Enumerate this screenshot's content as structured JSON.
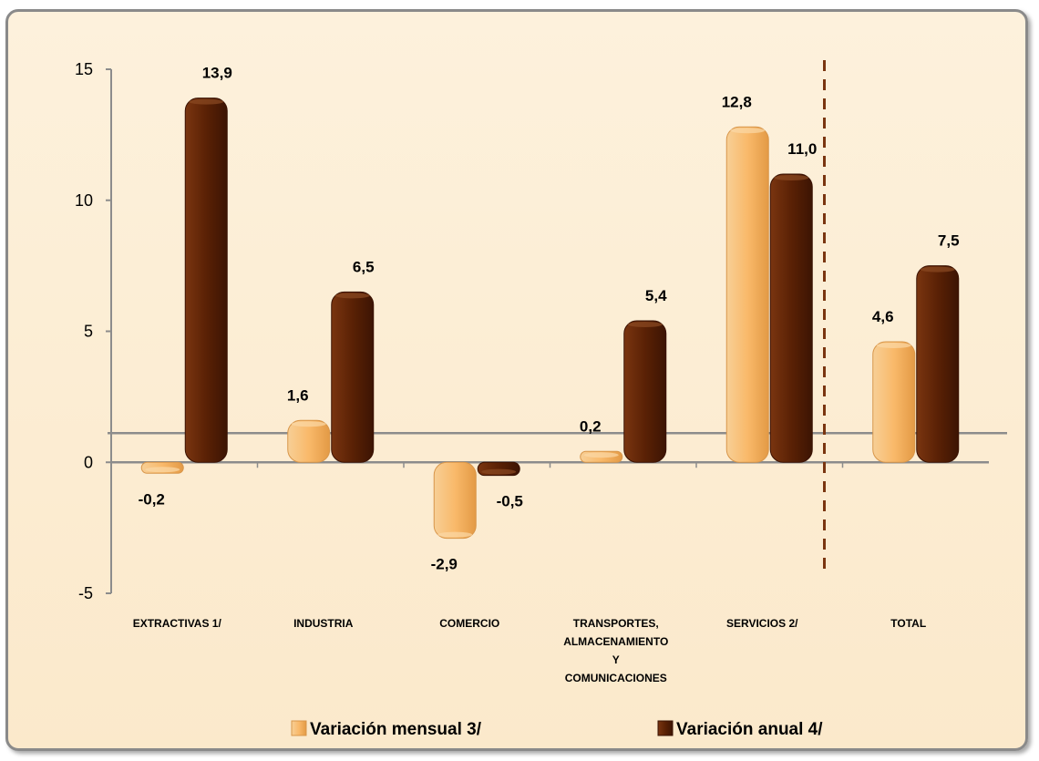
{
  "chart_data": {
    "type": "bar",
    "categories": [
      [
        "EXTRACTIVAS  1/"
      ],
      [
        "INDUSTRIA"
      ],
      [
        "COMERCIO"
      ],
      [
        "TRANSPORTES,",
        "ALMACENAMIENTO",
        "Y",
        "COMUNICACIONES"
      ],
      [
        "SERVICIOS  2/"
      ],
      [
        "TOTAL"
      ]
    ],
    "series": [
      {
        "name": "Variación mensual 3/",
        "values": [
          -0.2,
          1.6,
          -2.9,
          0.2,
          12.8,
          4.6
        ],
        "labels": [
          "-0,2",
          "1,6",
          "-2,9",
          "0,2",
          "12,8",
          "4,6"
        ],
        "color": "#f5c07a"
      },
      {
        "name": "Variación anual 4/",
        "values": [
          13.9,
          6.5,
          -0.5,
          5.4,
          11.0,
          7.5
        ],
        "labels": [
          "13,9",
          "6,5",
          "-0,5",
          "5,4",
          "11,0",
          "7,5"
        ],
        "color": "#6b2a08"
      }
    ],
    "yticks": [
      "15",
      "10",
      "5",
      "0",
      "-5"
    ],
    "ylim": [
      -5,
      15
    ],
    "legend_position": "bottom",
    "separator_before_last_category": true
  }
}
